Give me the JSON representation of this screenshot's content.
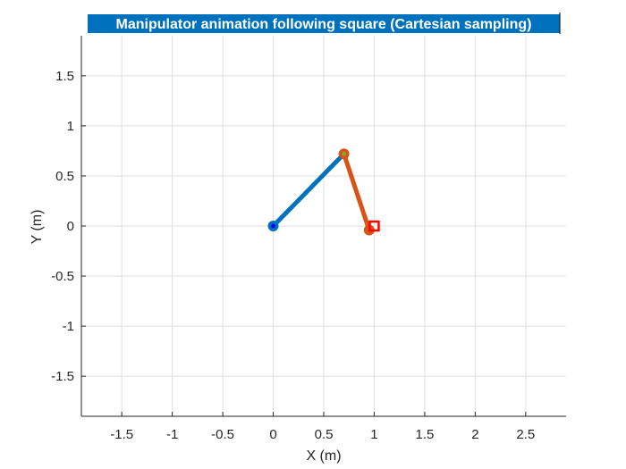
{
  "chart_data": {
    "type": "line",
    "title": "Manipulator animation following square (Cartesian sampling)",
    "xlabel": "X (m)",
    "ylabel": "Y (m)",
    "xlim": [
      -1.9,
      2.9
    ],
    "ylim": [
      -1.9,
      1.9
    ],
    "xticks": [
      -1.5,
      -1,
      -0.5,
      0,
      0.5,
      1,
      1.5,
      2,
      2.5
    ],
    "yticks": [
      -1.5,
      -1,
      -0.5,
      0,
      0.5,
      1,
      1.5
    ],
    "xtick_labels": [
      "-1.5",
      "-1",
      "-0.5",
      "0",
      "0.5",
      "1",
      "1.5",
      "2",
      "2.5"
    ],
    "ytick_labels": [
      "-1.5",
      "-1",
      "-0.5",
      "0",
      "0.5",
      "1",
      "1.5"
    ],
    "grid": true,
    "series": [
      {
        "color": "#0072BD",
        "x": [
          0,
          0.7
        ],
        "y": [
          0,
          0.72
        ]
      },
      {
        "color": "#D95319",
        "x": [
          0.7,
          0.95
        ],
        "y": [
          0.72,
          -0.04
        ]
      }
    ],
    "joints": [
      {
        "color": "#0072BD",
        "x": 0,
        "y": 0
      },
      {
        "color": "#D95319",
        "x": 0.7,
        "y": 0.72
      },
      {
        "color": "#D95319",
        "x": 0.95,
        "y": -0.04
      }
    ],
    "joint_centers": [
      {
        "color": "#0000FF",
        "x": 0,
        "y": 0
      },
      {
        "color": "#77AC30",
        "x": 0.7,
        "y": 0.72
      }
    ],
    "target": {
      "color": "#FF0000",
      "x": 1,
      "y": 0
    },
    "title_bg": "#0072BD"
  }
}
